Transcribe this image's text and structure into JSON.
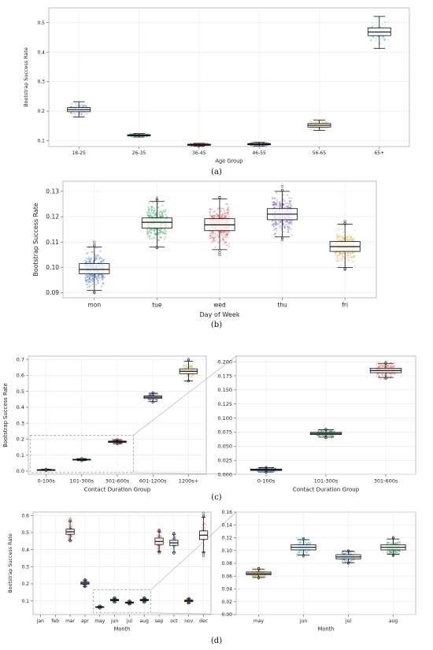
{
  "panel_labels": [
    "(a)",
    "(b)",
    "(c)",
    "(d)"
  ],
  "chart_data": [
    {
      "type": "box",
      "panel": "a",
      "title": "",
      "xlabel": "Age Group",
      "ylabel": "Bootstrap Success Rate",
      "ylim": [
        0.08,
        0.55
      ],
      "yticks": [
        0.1,
        0.2,
        0.3,
        0.4,
        0.5
      ],
      "ytick_labels": [
        "0.1",
        "0.2",
        "0.3",
        "0.4",
        "0.5"
      ],
      "grid": true,
      "categories": [
        "18-25",
        "26-35",
        "36-45",
        "46-55",
        "56-65",
        "65+"
      ],
      "colors": [
        "#3f73c4",
        "#1e9e4a",
        "#c53030",
        "#5b3f9c",
        "#d4a84a",
        "#2ab5d8"
      ],
      "boxes": [
        {
          "whislo": 0.18,
          "q1": 0.198,
          "med": 0.205,
          "q3": 0.212,
          "whishi": 0.232
        },
        {
          "whislo": 0.112,
          "q1": 0.116,
          "med": 0.118,
          "q3": 0.12,
          "whishi": 0.124
        },
        {
          "whislo": 0.081,
          "q1": 0.084,
          "med": 0.086,
          "q3": 0.088,
          "whishi": 0.091
        },
        {
          "whislo": 0.082,
          "q1": 0.086,
          "med": 0.088,
          "q3": 0.09,
          "whishi": 0.095
        },
        {
          "whislo": 0.135,
          "q1": 0.146,
          "med": 0.152,
          "q3": 0.158,
          "whishi": 0.17
        },
        {
          "whislo": 0.413,
          "q1": 0.456,
          "med": 0.468,
          "q3": 0.482,
          "whishi": 0.521
        }
      ]
    },
    {
      "type": "box",
      "panel": "b",
      "title": "",
      "xlabel": "Day of Week",
      "ylabel": "Bootstrap Success Rate",
      "ylim": [
        0.088,
        0.134
      ],
      "yticks": [
        0.09,
        0.1,
        0.11,
        0.12,
        0.13
      ],
      "ytick_labels": [
        "0.09",
        "0.10",
        "0.11",
        "0.12",
        "0.13"
      ],
      "grid": true,
      "categories": [
        "mon",
        "tue",
        "wed",
        "thu",
        "fri"
      ],
      "colors": [
        "#3f73c4",
        "#2e9e52",
        "#d94545",
        "#7a5fc0",
        "#d8b45a"
      ],
      "boxes": [
        {
          "whislo": 0.091,
          "q1": 0.0975,
          "med": 0.0992,
          "q3": 0.1015,
          "whishi": 0.108
        },
        {
          "whislo": 0.108,
          "q1": 0.1155,
          "med": 0.1178,
          "q3": 0.1195,
          "whishi": 0.126
        },
        {
          "whislo": 0.107,
          "q1": 0.1145,
          "med": 0.1168,
          "q3": 0.1192,
          "whishi": 0.127
        },
        {
          "whislo": 0.112,
          "q1": 0.1188,
          "med": 0.121,
          "q3": 0.1232,
          "whishi": 0.13
        },
        {
          "whislo": 0.1,
          "q1": 0.1063,
          "med": 0.1082,
          "q3": 0.1102,
          "whishi": 0.117
        }
      ]
    },
    {
      "type": "box",
      "panel": "c-left",
      "title": "",
      "xlabel": "Contact Duration Group",
      "ylabel": "Bootstrap Success Rate",
      "ylim": [
        -0.02,
        0.72
      ],
      "yticks": [
        0.0,
        0.1,
        0.2,
        0.3,
        0.4,
        0.5,
        0.6,
        0.7
      ],
      "ytick_labels": [
        "0.0",
        "0.1",
        "0.2",
        "0.3",
        "0.4",
        "0.5",
        "0.6",
        "0.7"
      ],
      "grid": true,
      "categories": [
        "0-100s",
        "101-300s",
        "301-600s",
        "601-1200s",
        "1200s+"
      ],
      "colors": [
        "#3f73c4",
        "#1e9e4a",
        "#c53030",
        "#5b3f9c",
        "#d4a84a"
      ],
      "boxes": [
        {
          "whislo": 0.004,
          "q1": 0.007,
          "med": 0.008,
          "q3": 0.009,
          "whishi": 0.012
        },
        {
          "whislo": 0.066,
          "q1": 0.07,
          "med": 0.072,
          "q3": 0.074,
          "whishi": 0.078
        },
        {
          "whislo": 0.172,
          "q1": 0.18,
          "med": 0.184,
          "q3": 0.188,
          "whishi": 0.196
        },
        {
          "whislo": 0.435,
          "q1": 0.455,
          "med": 0.463,
          "q3": 0.471,
          "whishi": 0.488
        },
        {
          "whislo": 0.565,
          "q1": 0.61,
          "med": 0.625,
          "q3": 0.64,
          "whishi": 0.688
        }
      ],
      "zoom_box": {
        "categories": [
          "0-100s",
          "301-600s"
        ],
        "ylim": [
          -0.01,
          0.225
        ]
      }
    },
    {
      "type": "box",
      "panel": "c-right",
      "title": "",
      "xlabel": "Contact Duration Group",
      "ylabel": "",
      "ylim": [
        0.0,
        0.21
      ],
      "yticks": [
        0.0,
        0.025,
        0.05,
        0.075,
        0.1,
        0.125,
        0.15,
        0.175,
        0.2
      ],
      "ytick_labels": [
        "0.000",
        "0.025",
        "0.050",
        "0.075",
        "0.100",
        "0.125",
        "0.150",
        "0.175",
        "0.200"
      ],
      "grid": true,
      "categories": [
        "0-100s",
        "101-300s",
        "301-600s"
      ],
      "colors": [
        "#3f73c4",
        "#1e9e4a",
        "#d94545"
      ],
      "boxes": [
        {
          "whislo": 0.004,
          "q1": 0.0068,
          "med": 0.008,
          "q3": 0.0092,
          "whishi": 0.012
        },
        {
          "whislo": 0.066,
          "q1": 0.0705,
          "med": 0.0725,
          "q3": 0.0745,
          "whishi": 0.079
        },
        {
          "whislo": 0.172,
          "q1": 0.1805,
          "med": 0.1845,
          "q3": 0.1885,
          "whishi": 0.197
        }
      ]
    },
    {
      "type": "box",
      "panel": "d-left",
      "title": "",
      "xlabel": "Month",
      "ylabel": "Bootstrap Success Rate",
      "ylim": [
        0.02,
        0.62
      ],
      "yticks": [
        0.1,
        0.2,
        0.3,
        0.4,
        0.5,
        0.6
      ],
      "ytick_labels": [
        "0.1",
        "0.2",
        "0.3",
        "0.4",
        "0.5",
        "0.6"
      ],
      "grid": true,
      "categories": [
        "jan",
        "feb",
        "mar",
        "apr",
        "may",
        "jun",
        "jul",
        "aug",
        "sep",
        "oct",
        "nov",
        "dec"
      ],
      "colors": [
        "#888888",
        "#888888",
        "#c53030",
        "#5b3f9c",
        "#d4a84a",
        "#2ab5d8",
        "#3f73c4",
        "#1e9e4a",
        "#e23a3a",
        "#7a5fc0",
        "#e07b2a",
        "#e85bb0"
      ],
      "boxes": [
        null,
        null,
        {
          "whislo": 0.455,
          "q1": 0.49,
          "med": 0.505,
          "q3": 0.52,
          "whishi": 0.565
        },
        {
          "whislo": 0.185,
          "q1": 0.198,
          "med": 0.204,
          "q3": 0.21,
          "whishi": 0.222
        },
        {
          "whislo": 0.058,
          "q1": 0.062,
          "med": 0.064,
          "q3": 0.066,
          "whishi": 0.07
        },
        {
          "whislo": 0.093,
          "q1": 0.101,
          "med": 0.105,
          "q3": 0.109,
          "whishi": 0.116
        },
        {
          "whislo": 0.081,
          "q1": 0.087,
          "med": 0.09,
          "q3": 0.093,
          "whishi": 0.099
        },
        {
          "whislo": 0.094,
          "q1": 0.101,
          "med": 0.105,
          "q3": 0.109,
          "whishi": 0.117
        },
        {
          "whislo": 0.39,
          "q1": 0.43,
          "med": 0.448,
          "q3": 0.468,
          "whishi": 0.505
        },
        {
          "whislo": 0.385,
          "q1": 0.425,
          "med": 0.44,
          "q3": 0.455,
          "whishi": 0.49
        },
        {
          "whislo": 0.087,
          "q1": 0.095,
          "med": 0.1,
          "q3": 0.105,
          "whishi": 0.113
        },
        {
          "whislo": 0.385,
          "q1": 0.46,
          "med": 0.485,
          "q3": 0.51,
          "whishi": 0.59
        }
      ],
      "zoom_box": {
        "categories": [
          "may",
          "aug"
        ],
        "ylim": [
          0.03,
          0.165
        ]
      }
    },
    {
      "type": "box",
      "panel": "d-right",
      "title": "",
      "xlabel": "Month",
      "ylabel": "",
      "ylim": [
        0.0,
        0.16
      ],
      "yticks": [
        0.0,
        0.02,
        0.04,
        0.06,
        0.08,
        0.1,
        0.12,
        0.14,
        0.16
      ],
      "ytick_labels": [
        "0.00",
        "0.02",
        "0.04",
        "0.06",
        "0.08",
        "0.10",
        "0.12",
        "0.14",
        "0.16"
      ],
      "grid": true,
      "categories": [
        "may",
        "jun",
        "jul",
        "aug"
      ],
      "colors": [
        "#d4a84a",
        "#2ab5d8",
        "#3f73c4",
        "#1e9e4a"
      ],
      "boxes": [
        {
          "whislo": 0.058,
          "q1": 0.062,
          "med": 0.064,
          "q3": 0.0665,
          "whishi": 0.071
        },
        {
          "whislo": 0.093,
          "q1": 0.101,
          "med": 0.105,
          "q3": 0.109,
          "whishi": 0.117
        },
        {
          "whislo": 0.081,
          "q1": 0.087,
          "med": 0.09,
          "q3": 0.0935,
          "whishi": 0.099
        },
        {
          "whislo": 0.094,
          "q1": 0.101,
          "med": 0.105,
          "q3": 0.109,
          "whishi": 0.118
        }
      ]
    }
  ]
}
